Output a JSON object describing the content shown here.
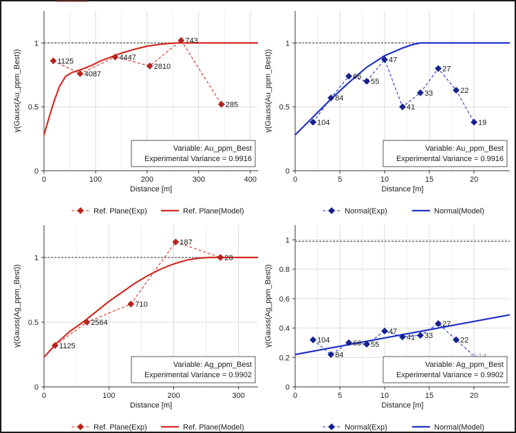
{
  "page": {
    "cropped_title": "ssssssssss"
  },
  "colors": {
    "red": "#d42a22",
    "red_marker": "#b8231b",
    "blue": "#1f2fc8",
    "blue_marker": "#16218f",
    "grid": "#d9d9d9",
    "sill": "#555555"
  },
  "chart_data": [
    {
      "type": "line",
      "id": "au-ref-plane",
      "color_key": "red",
      "xlabel": "Distance [m]",
      "ylabel": "γ(Gauss(Au_ppm_Best))",
      "xlim": [
        0,
        415
      ],
      "ylim": [
        0,
        1.25
      ],
      "xticks": [
        0,
        100,
        200,
        300,
        400
      ],
      "yticks": [
        0,
        0.5,
        1
      ],
      "ytick_labels": [
        "0",
        "0.5",
        "1"
      ],
      "sill": 1,
      "variable_text": "Variable: Au_ppm_Best",
      "variance_text": "Experimental Variance = 0.9916",
      "exp": {
        "name": "Ref. Plane(Exp)",
        "points": [
          {
            "x": 18,
            "y": 0.86,
            "label": "1125"
          },
          {
            "x": 70,
            "y": 0.76,
            "label": "4087"
          },
          {
            "x": 138,
            "y": 0.89,
            "label": "4447"
          },
          {
            "x": 205,
            "y": 0.82,
            "label": "2810"
          },
          {
            "x": 266,
            "y": 1.02,
            "label": "743"
          },
          {
            "x": 344,
            "y": 0.52,
            "label": "285"
          }
        ]
      },
      "model": {
        "name": "Ref. Plane(Model)",
        "points": [
          [
            0,
            0.28
          ],
          [
            10,
            0.42
          ],
          [
            20,
            0.55
          ],
          [
            30,
            0.66
          ],
          [
            42,
            0.74
          ],
          [
            55,
            0.77
          ],
          [
            70,
            0.79
          ],
          [
            90,
            0.82
          ],
          [
            110,
            0.86
          ],
          [
            130,
            0.89
          ],
          [
            150,
            0.92
          ],
          [
            175,
            0.95
          ],
          [
            200,
            0.975
          ],
          [
            225,
            0.99
          ],
          [
            245,
            0.997
          ],
          [
            260,
            1
          ],
          [
            415,
            1
          ]
        ]
      }
    },
    {
      "type": "line",
      "id": "au-normal",
      "color_key": "blue",
      "xlabel": "Distance [m]",
      "ylabel": "γ(Gauss(Au_ppm_Best))",
      "xlim": [
        0,
        24
      ],
      "ylim": [
        0,
        1.25
      ],
      "xticks": [
        0,
        5,
        10,
        15,
        20
      ],
      "yticks": [
        0,
        0.5,
        1
      ],
      "ytick_labels": [
        "0",
        "0.5",
        "1"
      ],
      "sill": 1,
      "variable_text": "Variable: Au_ppm_Best",
      "variance_text": "Experimental Variance = 0.9916",
      "exp": {
        "name": "Normal(Exp)",
        "points": [
          {
            "x": 2,
            "y": 0.38,
            "label": "104"
          },
          {
            "x": 4,
            "y": 0.57,
            "label": "84"
          },
          {
            "x": 6,
            "y": 0.74,
            "label": "66"
          },
          {
            "x": 8,
            "y": 0.7,
            "label": "55"
          },
          {
            "x": 10,
            "y": 0.87,
            "label": "47"
          },
          {
            "x": 12,
            "y": 0.5,
            "label": "41"
          },
          {
            "x": 14,
            "y": 0.61,
            "label": "33"
          },
          {
            "x": 16,
            "y": 0.8,
            "label": "27"
          },
          {
            "x": 18,
            "y": 0.63,
            "label": "22"
          },
          {
            "x": 20,
            "y": 0.38,
            "label": "19"
          }
        ]
      },
      "model": {
        "name": "Normal(Model)",
        "points": [
          [
            0,
            0.28
          ],
          [
            2,
            0.42
          ],
          [
            4,
            0.56
          ],
          [
            6,
            0.69
          ],
          [
            8,
            0.81
          ],
          [
            10,
            0.9
          ],
          [
            12,
            0.96
          ],
          [
            13,
            0.985
          ],
          [
            14,
            1
          ],
          [
            24,
            1
          ]
        ]
      }
    },
    {
      "type": "line",
      "id": "ag-ref-plane",
      "color_key": "red",
      "xlabel": "Distance [m]",
      "ylabel": "γ(Gauss(Ag_ppm_Best))",
      "xlim": [
        0,
        330
      ],
      "ylim": [
        0,
        1.25
      ],
      "xticks": [
        0,
        100,
        200,
        300
      ],
      "yticks": [
        0,
        0.5,
        1
      ],
      "ytick_labels": [
        "0",
        "0.5",
        "1"
      ],
      "sill": 1,
      "variable_text": "Variable: Ag_ppm_Best",
      "variance_text": "Experimental Variance = 0.9902",
      "exp": {
        "name": "Ref. Plane(Exp)",
        "points": [
          {
            "x": 17,
            "y": 0.32,
            "label": "1125"
          },
          {
            "x": 66,
            "y": 0.5,
            "label": "2564"
          },
          {
            "x": 134,
            "y": 0.64,
            "label": "710"
          },
          {
            "x": 203,
            "y": 1.12,
            "label": "187"
          },
          {
            "x": 272,
            "y": 1,
            "label": "28"
          }
        ]
      },
      "model": {
        "name": "Ref. Plane(Model)",
        "points": [
          [
            0,
            0.23
          ],
          [
            20,
            0.34
          ],
          [
            40,
            0.43
          ],
          [
            60,
            0.5
          ],
          [
            80,
            0.58
          ],
          [
            100,
            0.66
          ],
          [
            120,
            0.73
          ],
          [
            140,
            0.8
          ],
          [
            160,
            0.86
          ],
          [
            180,
            0.91
          ],
          [
            200,
            0.95
          ],
          [
            220,
            0.98
          ],
          [
            240,
            0.995
          ],
          [
            255,
            1
          ],
          [
            330,
            1
          ]
        ]
      }
    },
    {
      "type": "line",
      "id": "ag-normal",
      "color_key": "blue",
      "xlabel": "Distance [m]",
      "ylabel": "γ(Gauss(Ag_ppm_Best))",
      "xlim": [
        0,
        24
      ],
      "ylim": [
        0,
        1.1
      ],
      "xticks": [
        0,
        5,
        10,
        15,
        20
      ],
      "yticks": [
        0,
        0.2,
        0.4,
        0.6,
        0.8,
        1
      ],
      "ytick_labels": [
        "0",
        "0.2",
        "0.4",
        "0.6",
        "0.8",
        "1"
      ],
      "sill": 0.99,
      "variable_text": "Variable: Ag_ppm_Best",
      "variance_text": "Experimental Variance = 0.9902",
      "exp": {
        "name": "Normal(Exp)",
        "points": [
          {
            "x": 2,
            "y": 0.32,
            "label": "104"
          },
          {
            "x": 4,
            "y": 0.22,
            "label": "84"
          },
          {
            "x": 6,
            "y": 0.3,
            "label": "66"
          },
          {
            "x": 8,
            "y": 0.29,
            "label": "55"
          },
          {
            "x": 10,
            "y": 0.38,
            "label": "47"
          },
          {
            "x": 12,
            "y": 0.34,
            "label": "41"
          },
          {
            "x": 14,
            "y": 0.35,
            "label": "33"
          },
          {
            "x": 16,
            "y": 0.43,
            "label": "27"
          },
          {
            "x": 18,
            "y": 0.32,
            "label": "22"
          },
          {
            "x": 20,
            "y": 0.21,
            "label": "14",
            "faded": true
          }
        ]
      },
      "model": {
        "name": "Normal(Model)",
        "points": [
          [
            0,
            0.22
          ],
          [
            24,
            0.49
          ]
        ]
      }
    }
  ]
}
